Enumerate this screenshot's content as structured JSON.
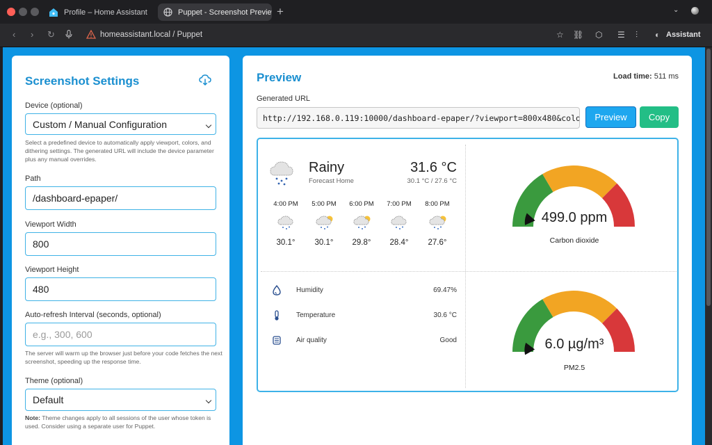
{
  "browser": {
    "tabs": [
      {
        "label": "Profile – Home Assistant"
      },
      {
        "label": "Puppet - Screenshot Preview",
        "close": "✕"
      }
    ],
    "new_tab": "+",
    "address": "homeassistant.local / Puppet",
    "assistant": "Assistant"
  },
  "settings": {
    "title": "Screenshot Settings",
    "device_label": "Device (optional)",
    "device_value": "Custom / Manual Configuration",
    "device_help": "Select a predefined device to automatically apply viewport, colors, and dithering settings. The generated URL will include the device parameter plus any manual overrides.",
    "path_label": "Path",
    "path_value": "/dashboard-epaper/",
    "vw_label": "Viewport Width",
    "vw_value": "800",
    "vh_label": "Viewport Height",
    "vh_value": "480",
    "refresh_label": "Auto-refresh Interval (seconds, optional)",
    "refresh_placeholder": "e.g., 300, 600",
    "refresh_help": "The server will warm up the browser just before your code fetches the next screenshot, speeding up the response time.",
    "theme_label": "Theme (optional)",
    "theme_value": "Default",
    "theme_note_bold": "Note:",
    "theme_note": " Theme changes apply to all sessions of the user whose token is used. Consider using a separate user for Puppet."
  },
  "preview": {
    "title": "Preview",
    "load_label": "Load time:",
    "load_value": "511 ms",
    "url_label": "Generated URL",
    "url_value": "http://192.168.0.119:10000/dashboard-epaper/?viewport=800x480&colo",
    "preview_btn": "Preview",
    "copy_btn": "Copy"
  },
  "dashboard": {
    "weather": {
      "condition": "Rainy",
      "location": "Forecast Home",
      "temp": "31.6 °C",
      "range": "30.1 °C / 27.6 °C",
      "forecast": [
        {
          "time": "4:00 PM",
          "temp": "30.1°",
          "icon": "rain-cloud-icon"
        },
        {
          "time": "5:00 PM",
          "temp": "30.1°",
          "icon": "cloud-sun-rain-icon"
        },
        {
          "time": "6:00 PM",
          "temp": "29.8°",
          "icon": "cloud-sun-rain-icon"
        },
        {
          "time": "7:00 PM",
          "temp": "28.4°",
          "icon": "rain-cloud-icon"
        },
        {
          "time": "8:00 PM",
          "temp": "27.6°",
          "icon": "cloud-sun-rain-icon"
        }
      ]
    },
    "co2": {
      "value": "499.0 ppm",
      "name": "Carbon dioxide",
      "level": 0.05
    },
    "pm25": {
      "value": "6.0 µg/m³",
      "name": "PM2.5",
      "level": 0.02
    },
    "sensors": [
      {
        "name": "Humidity",
        "value": "69.47%",
        "icon": "water-drop-icon"
      },
      {
        "name": "Temperature",
        "value": "30.6 °C",
        "icon": "thermometer-icon"
      },
      {
        "name": "Air quality",
        "value": "Good",
        "icon": "air-filter-icon"
      }
    ]
  },
  "colors": {
    "accent": "#0d95e3",
    "preview_btn": "#1ea7ef",
    "copy_btn": "#23be86",
    "gauge_green": "#3a9a3e",
    "gauge_orange": "#f2a523",
    "gauge_red": "#d8383a"
  }
}
